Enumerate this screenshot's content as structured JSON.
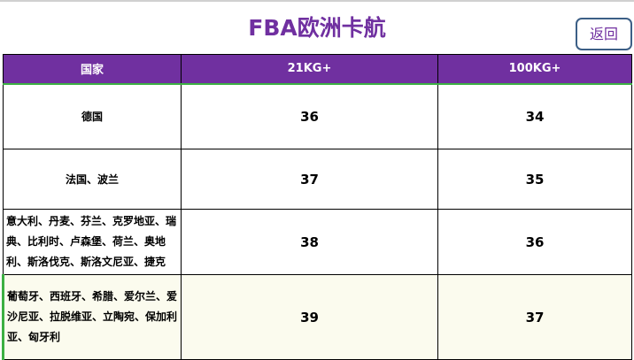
{
  "title": "FBA欧洲卡航",
  "back_button": "返回",
  "headers": [
    "国家",
    "21KG+",
    "100KG+"
  ],
  "rows": [
    {
      "country": "德国",
      "p21": "36",
      "p100": "34"
    },
    {
      "country": "法国、波兰",
      "p21": "37",
      "p100": "35"
    },
    {
      "country": "意大利、丹麦、芬兰、克罗地亚、瑞典、比利时、卢森堡、荷兰、奥地利、斯洛伐克、斯洛文尼亚、捷克",
      "p21": "38",
      "p100": "36"
    },
    {
      "country": "葡萄牙、西班牙、希腊、爱尔兰、爱沙尼亚、拉脱维亚、立陶宛、保加利亚、匈牙利",
      "p21": "39",
      "p100": "37"
    }
  ],
  "colors": {
    "accent": "#7030a0",
    "header_bg": "#7030a0",
    "highlight_row": "#fbfbee"
  }
}
